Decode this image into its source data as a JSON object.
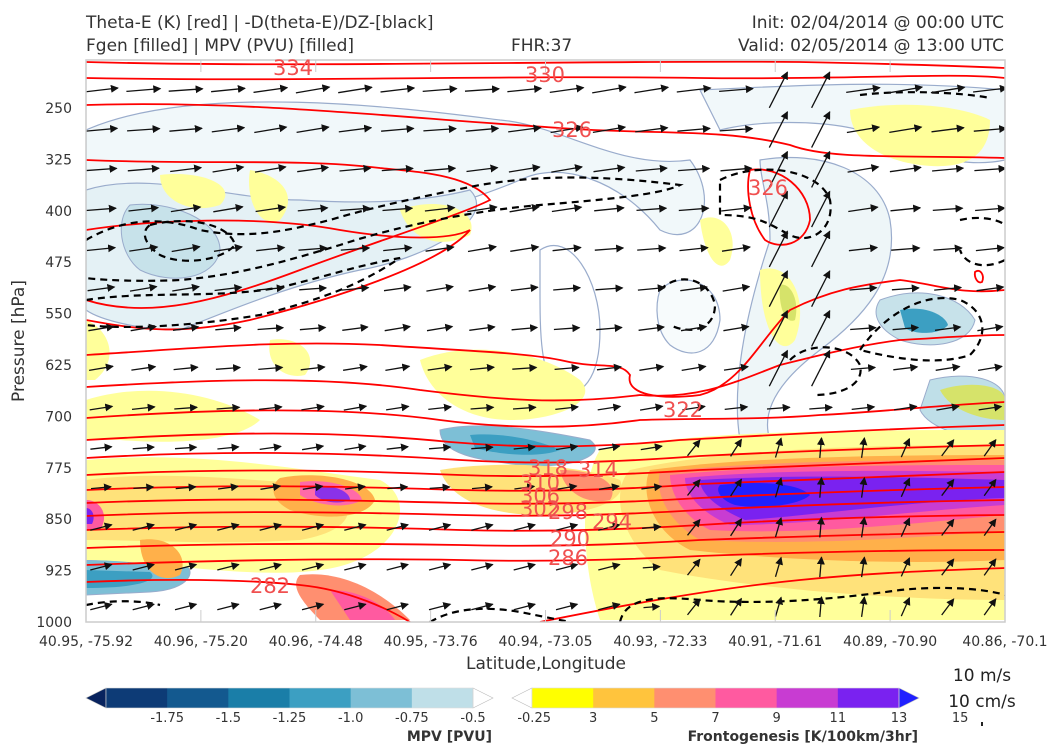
{
  "header": {
    "title_line1": "Theta-E (K) [red] | -D(theta-E)/DZ-[black]",
    "title_line2": "Fgen [filled] | MPV (PVU) [filled]",
    "fhr": "FHR:37",
    "init": "Init: 02/04/2014 @ 00:00 UTC",
    "valid": "Valid: 02/05/2014 @ 13:00 UTC"
  },
  "chart_data": {
    "type": "contour",
    "ylabel": "Pressure [hPa]",
    "xlabel": "Latitude,Longitude",
    "y_ticks": [
      "250",
      "325",
      "400",
      "475",
      "550",
      "625",
      "700",
      "775",
      "850",
      "925",
      "1000"
    ],
    "x_ticks": [
      "40.95, -75.92",
      "40.96, -75.20",
      "40.96, -74.48",
      "40.95, -73.76",
      "40.94, -73.05",
      "40.93, -72.33",
      "40.91, -71.61",
      "40.89, -70.90",
      "40.86, -70.1"
    ],
    "ylim": [
      1000,
      180
    ],
    "theta_e_contours": [
      {
        "label": "334",
        "y": 180
      },
      {
        "label": "330",
        "y": 200
      },
      {
        "label": "326",
        "y": 300
      },
      {
        "label": "326",
        "y": 380
      },
      {
        "label": "322",
        "y": 700
      },
      {
        "label": "318",
        "y": 775
      },
      {
        "label": "314",
        "y": 775
      },
      {
        "label": "310",
        "y": 800
      },
      {
        "label": "306",
        "y": 815
      },
      {
        "label": "302",
        "y": 825
      },
      {
        "label": "298",
        "y": 840
      },
      {
        "label": "294",
        "y": 855
      },
      {
        "label": "290",
        "y": 875
      },
      {
        "label": "286",
        "y": 905
      },
      {
        "label": "282",
        "y": 960
      }
    ],
    "wind_reference": [
      "10 m/s",
      "10 cm/s"
    ]
  },
  "colorbars": {
    "mpv": {
      "title": "MPV [PVU]",
      "labels": [
        "-1.75",
        "-1.5",
        "-1.25",
        "-1.0",
        "-0.75",
        "-0.5",
        "-0.25"
      ],
      "colors": [
        "#08235e",
        "#0d3b76",
        "#13598f",
        "#1a7ea8",
        "#3c9fc2",
        "#7dbfd6",
        "#bfdfe8",
        "#ffffff"
      ]
    },
    "fgen": {
      "title": "Frontogenesis [K/100km/3hr]",
      "labels": [
        "3",
        "5",
        "7",
        "9",
        "11",
        "13",
        "15"
      ],
      "colors": [
        "#ffffff",
        "#ffff00",
        "#ffc43d",
        "#ff8f70",
        "#ff5aa0",
        "#c83cd2",
        "#7a22f0",
        "#2020ff"
      ]
    }
  },
  "colors": {
    "theta_e": "#ff0000",
    "stability": "#000000",
    "mpv_outline": "#9aaccc"
  }
}
